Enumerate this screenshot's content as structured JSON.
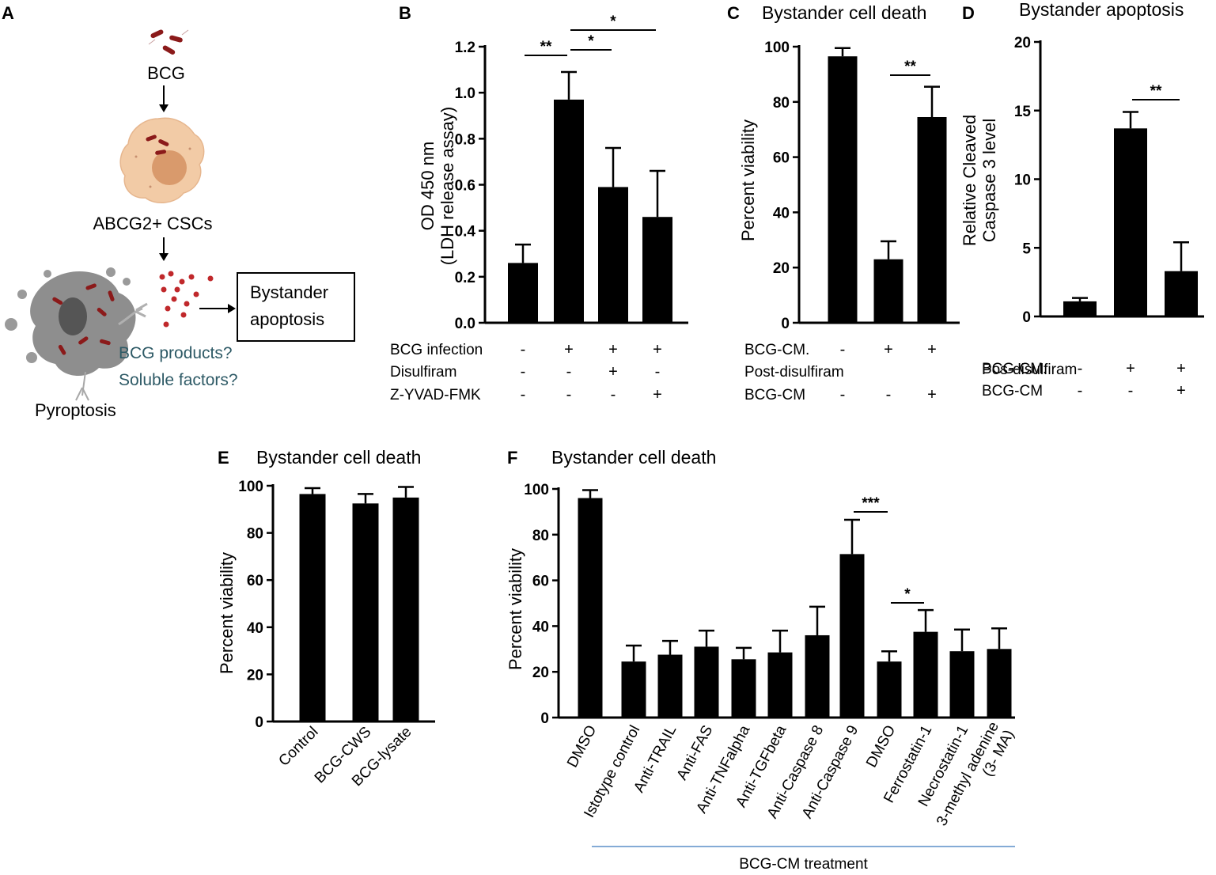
{
  "panel_a": {
    "letter": "A",
    "bcg_label": "BCG",
    "cell_label": "ABCG2+ CSCs",
    "box_line1": "Bystander",
    "box_line2": "apoptosis",
    "question1": "BCG products?",
    "question2": "Soluble factors?",
    "pyroptosis_label": "Pyroptosis",
    "colors": {
      "cell": "#f2cba6",
      "nucleus": "#d99a6c",
      "bacteria": "#8b1a1a",
      "dead_cell": "#8e8e8e",
      "dots": "#c0282b",
      "question_text": "#2e5a66"
    }
  },
  "chart_data": [
    {
      "id": "B",
      "letter": "B",
      "type": "bar",
      "title": "",
      "ylabel_lines": [
        "OD 450 nm",
        "(LDH release assay)"
      ],
      "ylim": [
        0,
        1.2
      ],
      "yticks": [
        "0.0",
        "0.2",
        "0.4",
        "0.6",
        "0.8",
        "1.0",
        "1.2"
      ],
      "values": [
        0.26,
        0.97,
        0.59,
        0.46
      ],
      "errors": [
        0.08,
        0.12,
        0.17,
        0.2
      ],
      "conditions": [
        {
          "label": "BCG infection",
          "symbols": [
            "-",
            "+",
            "+",
            "+"
          ]
        },
        {
          "label": "Disulfiram",
          "symbols": [
            "-",
            "-",
            "+",
            "-"
          ]
        },
        {
          "label": "Z-YVAD-FMK",
          "symbols": [
            "-",
            "-",
            "-",
            "+"
          ]
        }
      ],
      "significance": [
        {
          "from": 0,
          "to": 1,
          "label": "**"
        },
        {
          "from": 1,
          "to": 2,
          "label": "*"
        },
        {
          "from": 1,
          "to": 3,
          "label": "*"
        }
      ]
    },
    {
      "id": "C",
      "letter": "C",
      "type": "bar",
      "title": "Bystander cell death",
      "ylabel_lines": [
        "Percent viability"
      ],
      "ylim": [
        0,
        100
      ],
      "yticks": [
        "0",
        "20",
        "40",
        "60",
        "80",
        "100"
      ],
      "values": [
        96.5,
        23,
        74.5
      ],
      "errors": [
        3,
        6.5,
        11
      ],
      "conditions": [
        {
          "label": "BCG-CM.",
          "symbols": [
            "-",
            "+",
            "+"
          ]
        },
        {
          "label": "Post-disulfiram",
          "symbols": []
        },
        {
          "label": "BCG-CM",
          "symbols": [
            "-",
            "-",
            "+"
          ]
        }
      ],
      "significance": [
        {
          "from": 1,
          "to": 2,
          "label": "**"
        }
      ]
    },
    {
      "id": "D",
      "letter": "D",
      "type": "bar",
      "title": "Bystander apoptosis",
      "ylabel_lines": [
        "Relative Cleaved",
        "Caspase 3 level"
      ],
      "ylim": [
        0,
        20
      ],
      "yticks": [
        "0",
        "5",
        "10",
        "15",
        "20"
      ],
      "values": [
        1.1,
        13.7,
        3.3
      ],
      "errors": [
        0.25,
        1.2,
        2.1
      ],
      "conditions": [
        {
          "label": "BCG-CM.",
          "symbols": [
            "-",
            "+",
            "+"
          ]
        },
        {
          "label": "Pos-disulfiram",
          "symbols": []
        },
        {
          "label": "BCG-CM",
          "symbols": [
            "-",
            "-",
            "+"
          ]
        }
      ],
      "significance": [
        {
          "from": 1,
          "to": 2,
          "label": "**"
        }
      ]
    },
    {
      "id": "E",
      "letter": "E",
      "type": "bar",
      "title": "Bystander cell death",
      "ylabel_lines": [
        "Percent viability"
      ],
      "ylim": [
        0,
        100
      ],
      "yticks": [
        "0",
        "20",
        "40",
        "60",
        "80",
        "100"
      ],
      "categories": [
        "Control",
        "BCG-CWS",
        "BCG-lysate"
      ],
      "values": [
        96.5,
        92.5,
        95
      ],
      "errors": [
        2.5,
        4,
        4.5
      ],
      "significance": []
    },
    {
      "id": "F",
      "letter": "F",
      "type": "bar",
      "title": "Bystander cell death",
      "ylabel_lines": [
        "Percent viability"
      ],
      "ylim": [
        0,
        100
      ],
      "yticks": [
        "0",
        "20",
        "40",
        "60",
        "80",
        "100"
      ],
      "categories": [
        "DMSO",
        "Istotype control",
        "Anti-TRAIL",
        "Anti-FAS",
        "Anti-TNFalpha",
        "Anti-TGFbeta",
        "Anti-Caspase 8",
        "Anti-Caspase 9",
        "DMSO",
        "Ferrostatin-1",
        "Necrostatin-1",
        "3-methyl adenine|(3- MA)"
      ],
      "values": [
        96,
        24.5,
        27.5,
        31,
        25.5,
        28.5,
        36,
        71.5,
        24.5,
        37.5,
        29,
        30
      ],
      "errors": [
        3.5,
        7,
        6,
        7,
        5,
        9.5,
        12.5,
        15,
        4.5,
        9.5,
        9.5,
        9
      ],
      "significance": [
        {
          "from": 7,
          "to": 8,
          "label": "***"
        },
        {
          "from": 8,
          "to": 9,
          "label": "*"
        }
      ],
      "group_label": "BCG-CM treatment"
    }
  ]
}
